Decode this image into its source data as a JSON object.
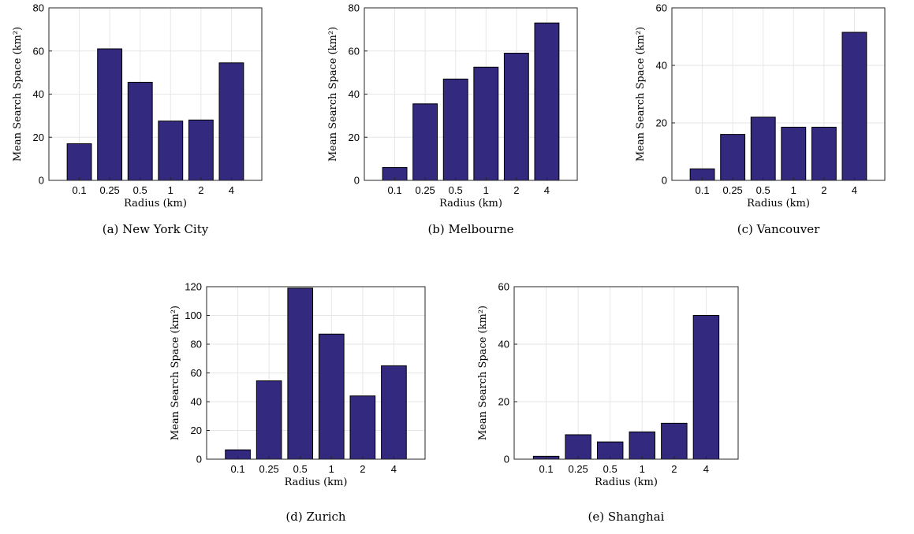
{
  "colors": {
    "bar": "#33297f",
    "grid": "#e6e6e6",
    "axis": "#262626"
  },
  "chart_data": [
    {
      "type": "bar",
      "caption": "(a)  New York City",
      "categories": [
        "0.1",
        "0.25",
        "0.5",
        "1",
        "2",
        "4"
      ],
      "values": [
        17,
        61,
        45.5,
        27.5,
        28,
        54.5
      ],
      "xlabel": "Radius (km)",
      "ylabel": "Mean Search Space (km²)",
      "ylim": [
        0,
        80
      ],
      "yticks": [
        "0",
        "20",
        "40",
        "60",
        "80"
      ],
      "grid": true
    },
    {
      "type": "bar",
      "caption": "(b)  Melbourne",
      "categories": [
        "0.1",
        "0.25",
        "0.5",
        "1",
        "2",
        "4"
      ],
      "values": [
        6,
        35.5,
        47,
        52.5,
        59,
        73
      ],
      "xlabel": "Radius (km)",
      "ylabel": "Mean Search Space (km²)",
      "ylim": [
        0,
        80
      ],
      "yticks": [
        "0",
        "20",
        "40",
        "60",
        "80"
      ],
      "grid": true
    },
    {
      "type": "bar",
      "caption": "(c)  Vancouver",
      "categories": [
        "0.1",
        "0.25",
        "0.5",
        "1",
        "2",
        "4"
      ],
      "values": [
        4,
        16,
        22,
        18.5,
        18.5,
        51.5
      ],
      "xlabel": "Radius (km)",
      "ylabel": "Mean Search Space (km²)",
      "ylim": [
        0,
        60
      ],
      "yticks": [
        "0",
        "20",
        "40",
        "60"
      ],
      "grid": true
    },
    {
      "type": "bar",
      "caption": "(d)  Zurich",
      "categories": [
        "0.1",
        "0.25",
        "0.5",
        "1",
        "2",
        "4"
      ],
      "values": [
        6.5,
        54.5,
        119,
        87,
        44,
        65
      ],
      "xlabel": "Radius (km)",
      "ylabel": "Mean Search Space (km²)",
      "ylim": [
        0,
        120
      ],
      "yticks": [
        "0",
        "20",
        "40",
        "60",
        "80",
        "100",
        "120"
      ],
      "grid": true
    },
    {
      "type": "bar",
      "caption": "(e)  Shanghai",
      "categories": [
        "0.1",
        "0.25",
        "0.5",
        "1",
        "2",
        "4"
      ],
      "values": [
        1,
        8.5,
        6,
        9.5,
        12.5,
        50
      ],
      "xlabel": "Radius (km)",
      "ylabel": "Mean Search Space (km²)",
      "ylim": [
        0,
        60
      ],
      "yticks": [
        "0",
        "20",
        "40",
        "60"
      ],
      "grid": true
    }
  ]
}
